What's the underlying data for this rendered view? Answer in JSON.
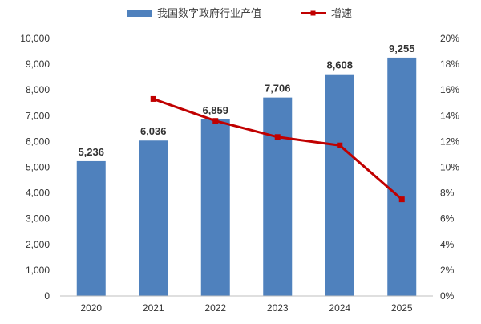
{
  "chart_data": {
    "type": "bar+line",
    "categories": [
      "2020",
      "2021",
      "2022",
      "2023",
      "2024",
      "2025"
    ],
    "series": [
      {
        "name": "我国数字政府行业产值",
        "type": "bar",
        "axis": "left",
        "color": "#4F81BD",
        "values": [
          5236,
          6036,
          6859,
          7706,
          8608,
          9255
        ],
        "labels": [
          "5,236",
          "6,036",
          "6,859",
          "7,706",
          "8,608",
          "9,255"
        ]
      },
      {
        "name": "增速",
        "type": "line",
        "axis": "right",
        "color": "#C00000",
        "values": [
          null,
          15.3,
          13.6,
          12.35,
          11.7,
          7.5
        ]
      }
    ],
    "left_axis": {
      "ylim": [
        0,
        10000
      ],
      "ticks": [
        "0",
        "1,000",
        "2,000",
        "3,000",
        "4,000",
        "5,000",
        "6,000",
        "7,000",
        "8,000",
        "9,000",
        "10,000"
      ]
    },
    "right_axis": {
      "ylim": [
        0,
        20
      ],
      "ticks": [
        "0%",
        "2%",
        "4%",
        "6%",
        "8%",
        "10%",
        "12%",
        "14%",
        "16%",
        "18%",
        "20%"
      ]
    },
    "grid": false,
    "legend": "top"
  }
}
